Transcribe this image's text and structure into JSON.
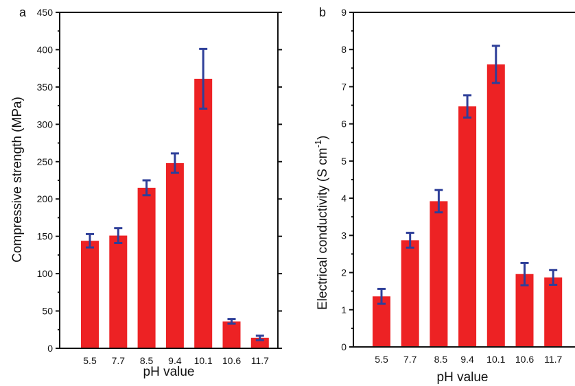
{
  "colors": {
    "bar": "#ed2224",
    "error_bar": "#2e3f99",
    "axis": "#111111"
  },
  "chart_data": [
    {
      "type": "bar",
      "panel_label": "a",
      "categories": [
        "5.5",
        "7.7",
        "8.5",
        "9.4",
        "10.1",
        "10.6",
        "11.7"
      ],
      "values": [
        144,
        151,
        215,
        248,
        361,
        36,
        14
      ],
      "errors": [
        9,
        10,
        10,
        13,
        40,
        3,
        3
      ],
      "xlabel": "pH value",
      "ylabel": "Compressive strength (MPa)",
      "ylim": [
        0,
        450
      ],
      "yticks": [
        "0",
        "50",
        "100",
        "150",
        "200",
        "250",
        "300",
        "350",
        "400",
        "450"
      ],
      "grid": false
    },
    {
      "type": "bar",
      "panel_label": "b",
      "categories": [
        "5.5",
        "7.7",
        "8.5",
        "9.4",
        "10.1",
        "10.6",
        "11.7"
      ],
      "values": [
        1.36,
        2.87,
        3.92,
        6.47,
        7.6,
        1.96,
        1.87
      ],
      "errors": [
        0.2,
        0.2,
        0.3,
        0.3,
        0.5,
        0.3,
        0.2
      ],
      "xlabel": "pH value",
      "ylabel": "Electrical conductivity (S cm",
      "ylabel_superscript": "-1",
      "ylabel_close": ")",
      "ylim": [
        0,
        9
      ],
      "yticks": [
        "0",
        "1",
        "2",
        "3",
        "4",
        "5",
        "6",
        "7",
        "8",
        "9"
      ],
      "grid": false
    }
  ]
}
